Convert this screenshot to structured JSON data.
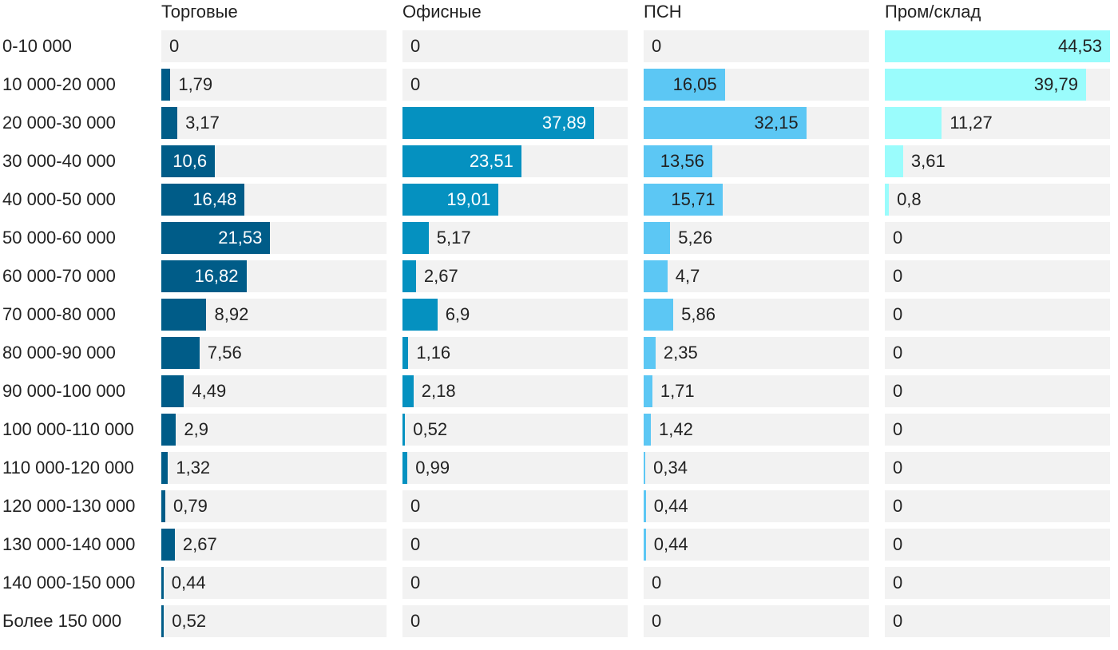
{
  "chart_data": {
    "type": "bar",
    "orientation": "horizontal",
    "layout": "small-multiples",
    "categories": [
      "0-10 000",
      "10 000-20 000",
      "20 000-30 000",
      "30 000-40 000",
      "40 000-50 000",
      "50 000-60 000",
      "60 000-70 000",
      "70 000-80 000",
      "80 000-90 000",
      "90 000-100 000",
      "100 000-110 000",
      "110 000-120 000",
      "120 000-130 000",
      "130 000-140 000",
      "140 000-150 000",
      "Более 150 000"
    ],
    "series": [
      {
        "name": "Торговые",
        "color": "#005c88",
        "label_color": "#ffffff",
        "values": [
          0,
          1.79,
          3.17,
          10.6,
          16.48,
          21.53,
          16.82,
          8.92,
          7.56,
          4.49,
          2.9,
          1.32,
          0.79,
          2.67,
          0.44,
          0.52
        ],
        "labels": [
          "0",
          "1,79",
          "3,17",
          "10,6",
          "16,48",
          "21,53",
          "16,82",
          "8,92",
          "7,56",
          "4,49",
          "2,9",
          "1,32",
          "0,79",
          "2,67",
          "0,44",
          "0,52"
        ]
      },
      {
        "name": "Офисные",
        "color": "#0591c0",
        "label_color": "#ffffff",
        "values": [
          0,
          0,
          37.89,
          23.51,
          19.01,
          5.17,
          2.67,
          6.9,
          1.16,
          2.18,
          0.52,
          0.99,
          0,
          0,
          0,
          0
        ],
        "labels": [
          "0",
          "0",
          "37,89",
          "23,51",
          "19,01",
          "5,17",
          "2,67",
          "6,9",
          "1,16",
          "2,18",
          "0,52",
          "0,99",
          "0",
          "0",
          "0",
          "0"
        ]
      },
      {
        "name": "ПСН",
        "color": "#5cc7f4",
        "label_color": "#222222",
        "values": [
          0,
          16.05,
          32.15,
          13.56,
          15.71,
          5.26,
          4.7,
          5.86,
          2.35,
          1.71,
          1.42,
          0.34,
          0.44,
          0.44,
          0,
          0
        ],
        "labels": [
          "0",
          "16,05",
          "32,15",
          "13,56",
          "15,71",
          "5,26",
          "4,7",
          "5,86",
          "2,35",
          "1,71",
          "1,42",
          "0,34",
          "0,44",
          "0,44",
          "0",
          "0"
        ]
      },
      {
        "name": "Пром/склад",
        "color": "#9afcfc",
        "label_color": "#222222",
        "values": [
          44.53,
          39.79,
          11.27,
          3.61,
          0.8,
          0,
          0,
          0,
          0,
          0,
          0,
          0,
          0,
          0,
          0,
          0
        ],
        "labels": [
          "44,53",
          "39,79",
          "11,27",
          "3,61",
          "0,8",
          "0",
          "0",
          "0",
          "0",
          "0",
          "0",
          "0",
          "0",
          "0",
          "0",
          "0"
        ]
      }
    ],
    "title": "",
    "xlabel": "",
    "ylabel": "",
    "legend": "none",
    "grid": false
  }
}
